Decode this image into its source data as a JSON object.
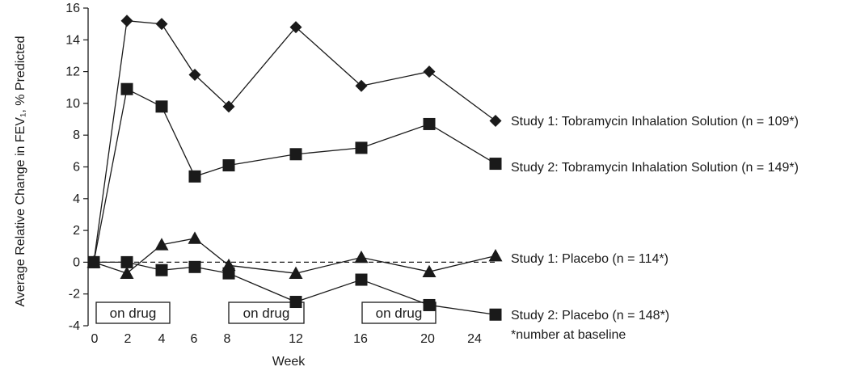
{
  "chart_data": {
    "type": "line",
    "xlabel": "Week",
    "ylabel": "Average Relative Change in FEV₁, % Predicted",
    "ylim": [
      -4,
      16
    ],
    "y_ticks": [
      16,
      14,
      12,
      10,
      8,
      6,
      4,
      2,
      0,
      -2,
      -4
    ],
    "x_ticks": [
      0,
      2,
      4,
      6,
      8,
      12,
      16,
      20,
      24
    ],
    "grid": false,
    "series": [
      {
        "name": "Study 1: Tobramycin Inhalation Solution (n = 109*)",
        "marker": "diamond",
        "points": [
          [
            0,
            0
          ],
          [
            2,
            15.2
          ],
          [
            4,
            15.0
          ],
          [
            6,
            11.8
          ],
          [
            8,
            9.8
          ],
          [
            12,
            14.8
          ],
          [
            16,
            11.1
          ],
          [
            20,
            12.0
          ],
          [
            24,
            8.9
          ]
        ]
      },
      {
        "name": "Study 2: Tobramycin Inhalation Solution (n = 149*)",
        "marker": "square",
        "points": [
          [
            0,
            0
          ],
          [
            2,
            10.9
          ],
          [
            4,
            9.8
          ],
          [
            6,
            5.4
          ],
          [
            8,
            6.1
          ],
          [
            12,
            6.8
          ],
          [
            16,
            7.2
          ],
          [
            20,
            8.7
          ],
          [
            24,
            6.2
          ]
        ]
      },
      {
        "name": "Study 1: Placebo (n = 114*)",
        "marker": "triangle",
        "points": [
          [
            0,
            0
          ],
          [
            2,
            -0.7
          ],
          [
            4,
            1.1
          ],
          [
            6,
            1.5
          ],
          [
            8,
            -0.2
          ],
          [
            12,
            -0.7
          ],
          [
            16,
            0.3
          ],
          [
            20,
            -0.6
          ],
          [
            24,
            0.4
          ]
        ]
      },
      {
        "name": "Study 2: Placebo (n = 148*)",
        "marker": "square",
        "points": [
          [
            0,
            0
          ],
          [
            2,
            0
          ],
          [
            4,
            -0.5
          ],
          [
            6,
            -0.3
          ],
          [
            8,
            -0.7
          ],
          [
            12,
            -2.5
          ],
          [
            16,
            -1.1
          ],
          [
            20,
            -2.7
          ],
          [
            24,
            -3.3
          ]
        ]
      }
    ],
    "reference_line": {
      "y": 0,
      "style": "dashed"
    },
    "annotations": [
      {
        "text": "on drug",
        "from_week": 0,
        "to_week": 4
      },
      {
        "text": "on drug",
        "from_week": 8,
        "to_week": 12
      },
      {
        "text": "on drug",
        "from_week": 16,
        "to_week": 20
      }
    ],
    "footnote": "*number at baseline"
  }
}
